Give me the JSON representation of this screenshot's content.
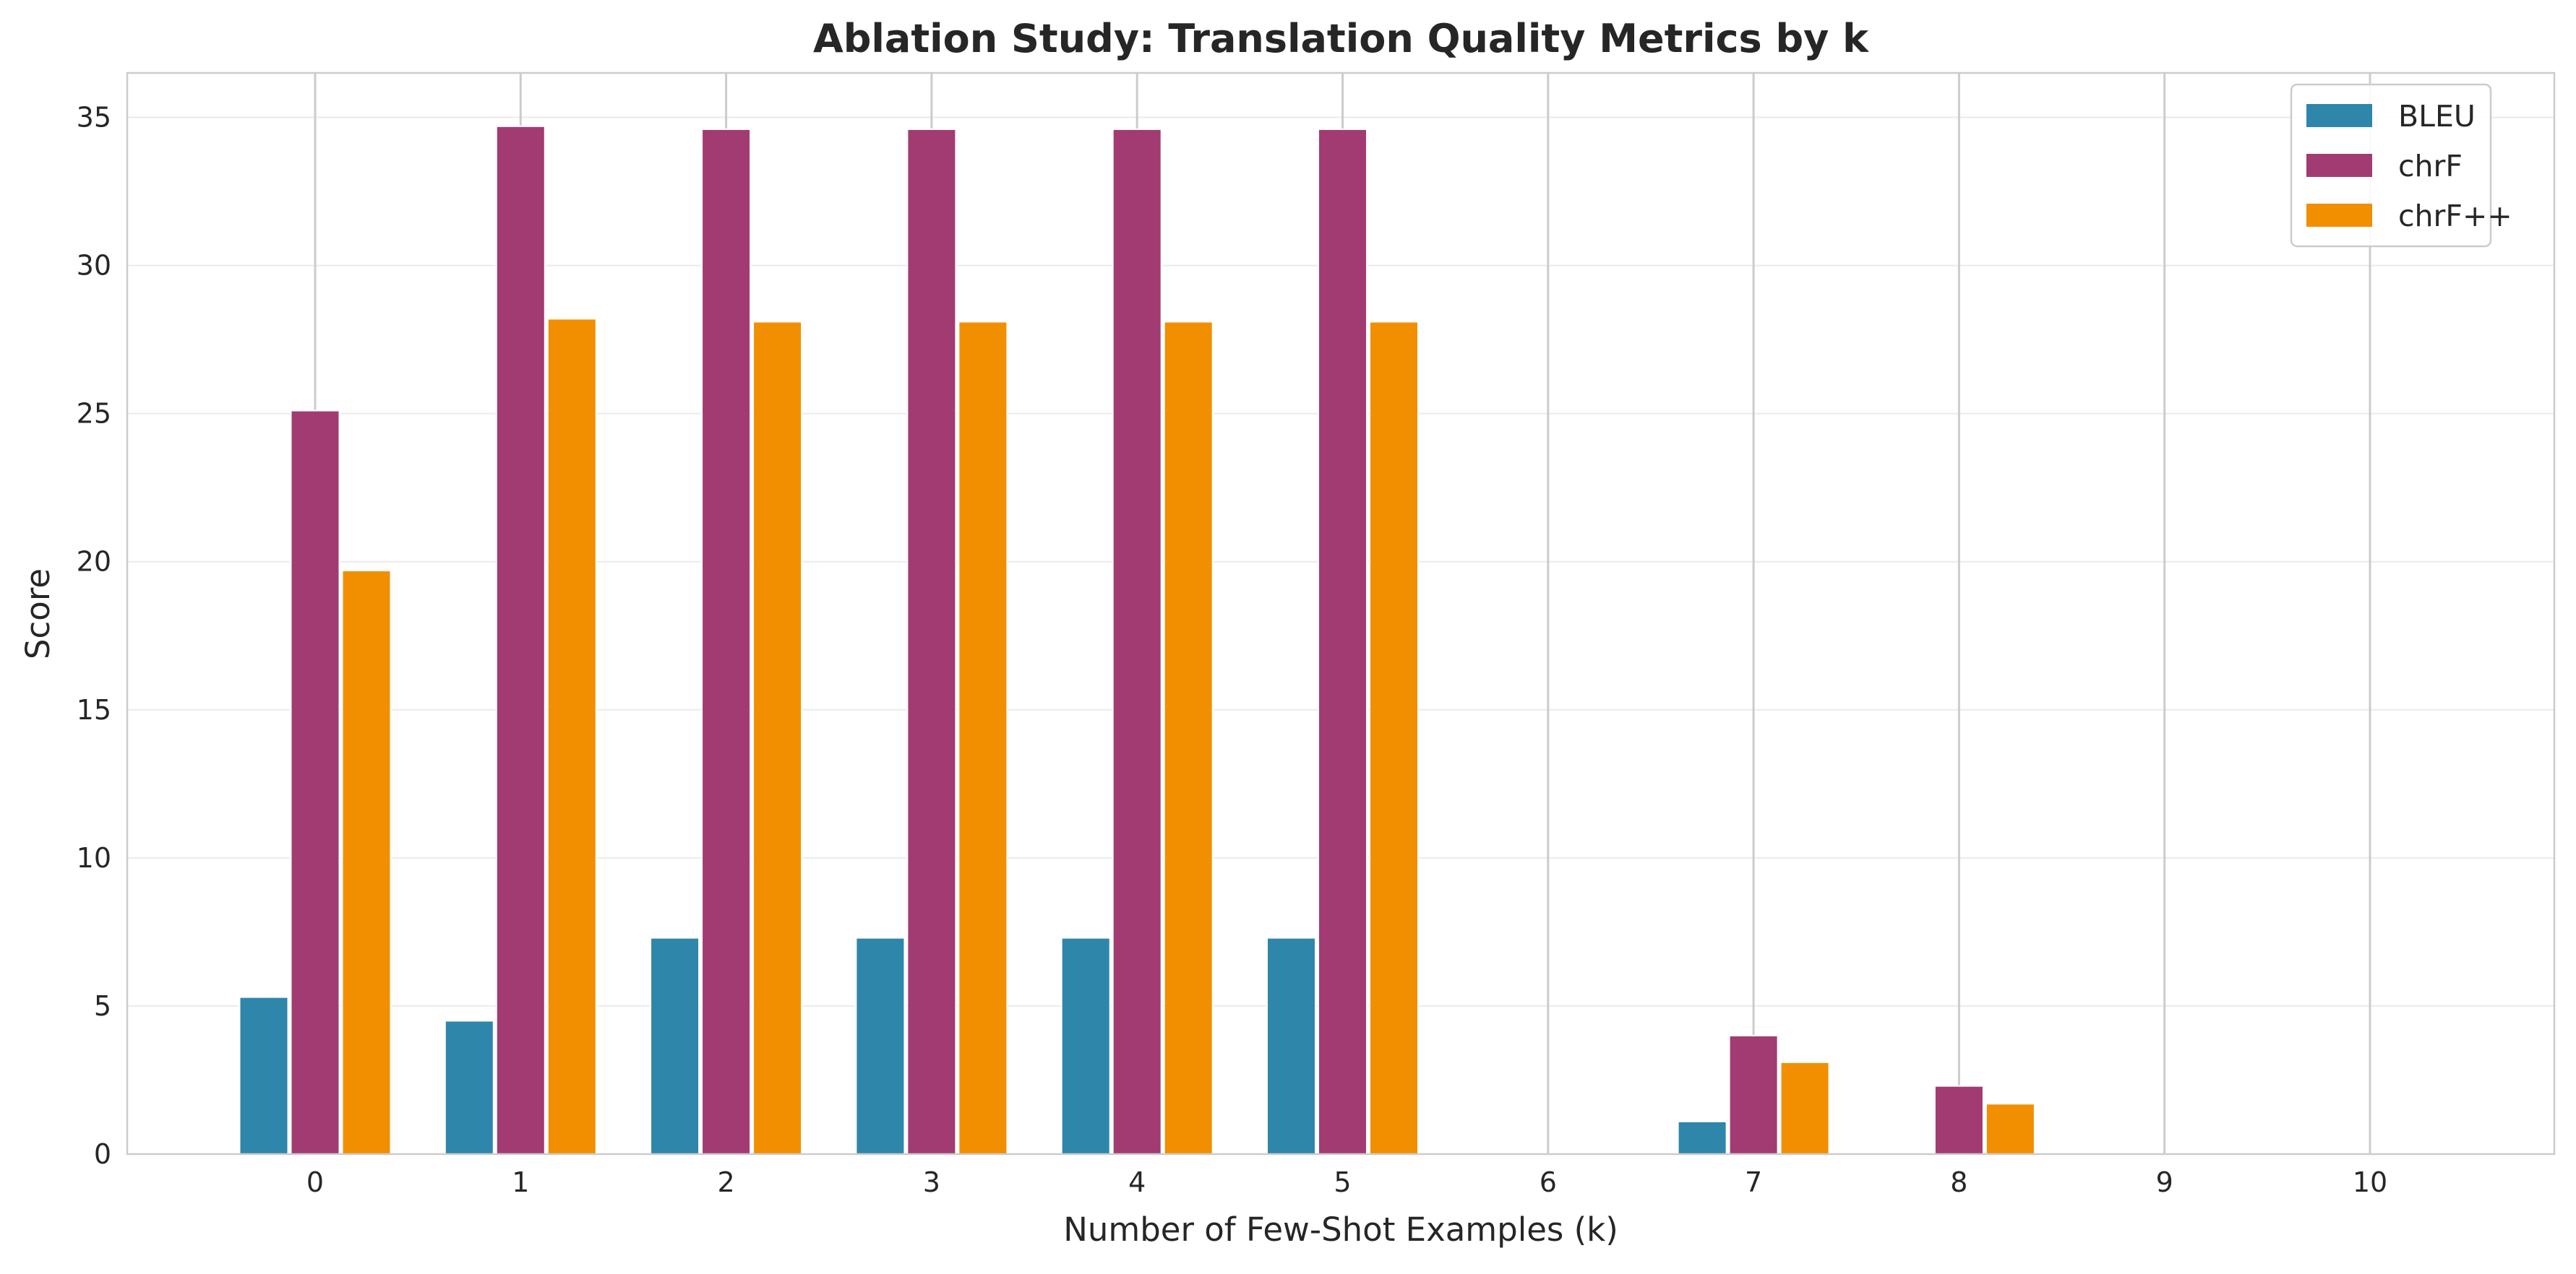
{
  "chart_data": {
    "type": "bar",
    "title": "Ablation Study: Translation Quality Metrics by k",
    "xlabel": "Number of Few-Shot Examples (k)",
    "ylabel": "Score",
    "categories": [
      "0",
      "1",
      "2",
      "3",
      "4",
      "5",
      "6",
      "7",
      "8",
      "9",
      "10"
    ],
    "ylim": [
      0,
      36.5
    ],
    "yticks": [
      0,
      5,
      10,
      15,
      20,
      25,
      30,
      35
    ],
    "grid": true,
    "legend_position": "top-right",
    "series": [
      {
        "name": "BLEU",
        "color": "#2e86ab",
        "values": [
          5.3,
          4.5,
          7.3,
          7.3,
          7.3,
          7.3,
          0,
          1.1,
          0,
          0,
          0
        ]
      },
      {
        "name": "chrF",
        "color": "#a23b72",
        "values": [
          25.1,
          34.7,
          34.6,
          34.6,
          34.6,
          34.6,
          0,
          4.0,
          2.3,
          0,
          0
        ]
      },
      {
        "name": "chrF++",
        "color": "#f18f01",
        "values": [
          19.7,
          28.2,
          28.1,
          28.1,
          28.1,
          28.1,
          0,
          3.1,
          1.7,
          0,
          0
        ]
      }
    ]
  }
}
